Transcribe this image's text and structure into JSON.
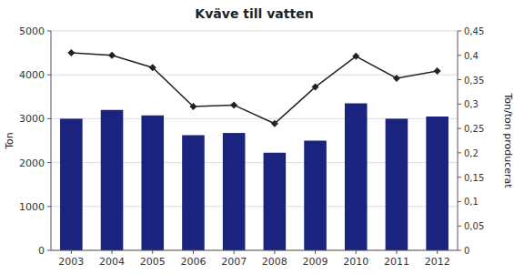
{
  "chart_data": {
    "type": "bar",
    "title": "Kväve till vatten",
    "categories": [
      "2003",
      "2004",
      "2005",
      "2006",
      "2007",
      "2008",
      "2009",
      "2010",
      "2011",
      "2012"
    ],
    "series": [
      {
        "type": "bar",
        "color": "#1a237e",
        "values": [
          3000,
          3200,
          3075,
          2625,
          2675,
          2225,
          2500,
          3350,
          3000,
          3050
        ]
      },
      {
        "type": "line",
        "axis": "y2",
        "color": "#222222",
        "marker": "diamond",
        "values": [
          0.405,
          0.4,
          0.375,
          0.295,
          0.298,
          0.26,
          0.335,
          0.398,
          0.353,
          0.368
        ]
      }
    ],
    "ylabel": "Ton",
    "y2label": "Ton/ton producerat",
    "ylim": [
      0,
      5000
    ],
    "yticks": [
      0,
      1000,
      2000,
      3000,
      4000,
      5000
    ],
    "y2lim": [
      0,
      0.45
    ],
    "y2ticks": [
      0,
      {
        "value": 0.05,
        "label": "0,05"
      },
      {
        "value": 0.1,
        "label": "0,1"
      },
      {
        "value": 0.15,
        "label": "0,15"
      },
      {
        "value": 0.2,
        "label": "0,2"
      },
      {
        "value": 0.25,
        "label": "0,25"
      },
      {
        "value": 0.3,
        "label": "0,3"
      },
      {
        "value": 0.35,
        "label": "0,35"
      },
      {
        "value": 0.4,
        "label": "0,4"
      },
      {
        "value": 0.45,
        "label": "0,45"
      }
    ],
    "grid": true
  }
}
